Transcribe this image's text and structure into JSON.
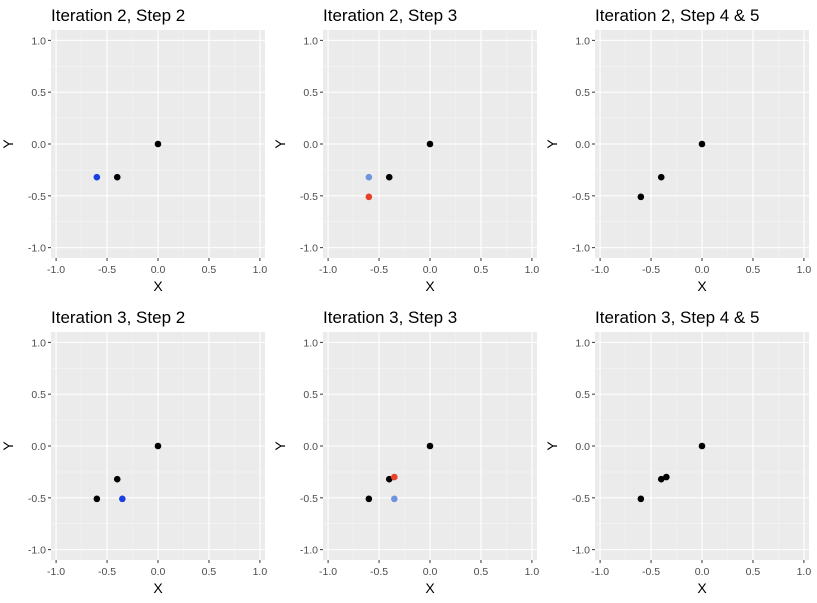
{
  "chart_data": [
    {
      "type": "scatter",
      "title": "Iteration 2, Step 2",
      "xlabel": "X",
      "ylabel": "Y",
      "xlim": [
        -1.05,
        1.05
      ],
      "ylim": [
        -1.1,
        1.1
      ],
      "xticks": [
        -1.0,
        -0.5,
        0.0,
        0.5,
        1.0
      ],
      "yticks": [
        -1.0,
        -0.5,
        0.0,
        0.5,
        1.0
      ],
      "xtick_labels": [
        "-1.0",
        "-0.5",
        "0.0",
        "0.5",
        "1.0"
      ],
      "ytick_labels": [
        "-1.0",
        "-0.5",
        "0.0",
        "0.5",
        "1.0"
      ],
      "grid": true,
      "points": [
        {
          "x": 0.0,
          "y": 0.0,
          "color": "#000000"
        },
        {
          "x": -0.4,
          "y": -0.32,
          "color": "#000000"
        },
        {
          "x": -0.6,
          "y": -0.32,
          "color": "#1a3fe0"
        }
      ]
    },
    {
      "type": "scatter",
      "title": "Iteration 2, Step 3",
      "xlabel": "X",
      "ylabel": "Y",
      "xlim": [
        -1.05,
        1.05
      ],
      "ylim": [
        -1.1,
        1.1
      ],
      "xticks": [
        -1.0,
        -0.5,
        0.0,
        0.5,
        1.0
      ],
      "yticks": [
        -1.0,
        -0.5,
        0.0,
        0.5,
        1.0
      ],
      "xtick_labels": [
        "-1.0",
        "-0.5",
        "0.0",
        "0.5",
        "1.0"
      ],
      "ytick_labels": [
        "-1.0",
        "-0.5",
        "0.0",
        "0.5",
        "1.0"
      ],
      "grid": true,
      "points": [
        {
          "x": 0.0,
          "y": 0.0,
          "color": "#000000"
        },
        {
          "x": -0.4,
          "y": -0.32,
          "color": "#000000"
        },
        {
          "x": -0.6,
          "y": -0.32,
          "color": "#6f94df"
        },
        {
          "x": -0.6,
          "y": -0.51,
          "color": "#e8412a"
        }
      ]
    },
    {
      "type": "scatter",
      "title": "Iteration 2, Step 4 & 5",
      "xlabel": "X",
      "ylabel": "Y",
      "xlim": [
        -1.05,
        1.05
      ],
      "ylim": [
        -1.1,
        1.1
      ],
      "xticks": [
        -1.0,
        -0.5,
        0.0,
        0.5,
        1.0
      ],
      "yticks": [
        -1.0,
        -0.5,
        0.0,
        0.5,
        1.0
      ],
      "xtick_labels": [
        "-1.0",
        "-0.5",
        "0.0",
        "0.5",
        "1.0"
      ],
      "ytick_labels": [
        "-1.0",
        "-0.5",
        "0.0",
        "0.5",
        "1.0"
      ],
      "grid": true,
      "points": [
        {
          "x": 0.0,
          "y": 0.0,
          "color": "#000000"
        },
        {
          "x": -0.4,
          "y": -0.32,
          "color": "#000000"
        },
        {
          "x": -0.6,
          "y": -0.51,
          "color": "#000000"
        }
      ]
    },
    {
      "type": "scatter",
      "title": "Iteration 3, Step 2",
      "xlabel": "X",
      "ylabel": "Y",
      "xlim": [
        -1.05,
        1.05
      ],
      "ylim": [
        -1.1,
        1.1
      ],
      "xticks": [
        -1.0,
        -0.5,
        0.0,
        0.5,
        1.0
      ],
      "yticks": [
        -1.0,
        -0.5,
        0.0,
        0.5,
        1.0
      ],
      "xtick_labels": [
        "-1.0",
        "-0.5",
        "0.0",
        "0.5",
        "1.0"
      ],
      "ytick_labels": [
        "-1.0",
        "-0.5",
        "0.0",
        "0.5",
        "1.0"
      ],
      "grid": true,
      "points": [
        {
          "x": 0.0,
          "y": 0.0,
          "color": "#000000"
        },
        {
          "x": -0.4,
          "y": -0.32,
          "color": "#000000"
        },
        {
          "x": -0.6,
          "y": -0.51,
          "color": "#000000"
        },
        {
          "x": -0.35,
          "y": -0.51,
          "color": "#1a3fe0"
        }
      ]
    },
    {
      "type": "scatter",
      "title": "Iteration 3, Step 3",
      "xlabel": "X",
      "ylabel": "Y",
      "xlim": [
        -1.05,
        1.05
      ],
      "ylim": [
        -1.1,
        1.1
      ],
      "xticks": [
        -1.0,
        -0.5,
        0.0,
        0.5,
        1.0
      ],
      "yticks": [
        -1.0,
        -0.5,
        0.0,
        0.5,
        1.0
      ],
      "xtick_labels": [
        "-1.0",
        "-0.5",
        "0.0",
        "0.5",
        "1.0"
      ],
      "ytick_labels": [
        "-1.0",
        "-0.5",
        "0.0",
        "0.5",
        "1.0"
      ],
      "grid": true,
      "points": [
        {
          "x": 0.0,
          "y": 0.0,
          "color": "#000000"
        },
        {
          "x": -0.4,
          "y": -0.32,
          "color": "#000000"
        },
        {
          "x": -0.6,
          "y": -0.51,
          "color": "#000000"
        },
        {
          "x": -0.35,
          "y": -0.51,
          "color": "#6f94df"
        },
        {
          "x": -0.35,
          "y": -0.3,
          "color": "#e8412a"
        }
      ]
    },
    {
      "type": "scatter",
      "title": "Iteration 3, Step 4 & 5",
      "xlabel": "X",
      "ylabel": "Y",
      "xlim": [
        -1.05,
        1.05
      ],
      "ylim": [
        -1.1,
        1.1
      ],
      "xticks": [
        -1.0,
        -0.5,
        0.0,
        0.5,
        1.0
      ],
      "yticks": [
        -1.0,
        -0.5,
        0.0,
        0.5,
        1.0
      ],
      "xtick_labels": [
        "-1.0",
        "-0.5",
        "0.0",
        "0.5",
        "1.0"
      ],
      "ytick_labels": [
        "-1.0",
        "-0.5",
        "0.0",
        "0.5",
        "1.0"
      ],
      "grid": true,
      "points": [
        {
          "x": 0.0,
          "y": 0.0,
          "color": "#000000"
        },
        {
          "x": -0.4,
          "y": -0.32,
          "color": "#000000"
        },
        {
          "x": -0.6,
          "y": -0.51,
          "color": "#000000"
        },
        {
          "x": -0.35,
          "y": -0.3,
          "color": "#000000"
        }
      ]
    }
  ],
  "colors": {
    "panel_background": "#ebebeb",
    "grid_major": "#ffffff",
    "grid_minor": "#f5f5f5",
    "tick_text": "#4d4d4d",
    "tick_mark": "#333333"
  }
}
